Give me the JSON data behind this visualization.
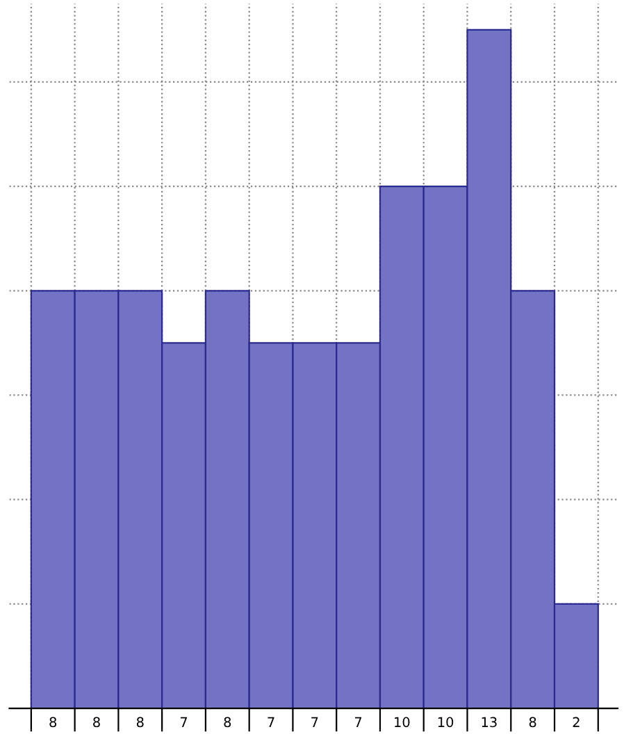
{
  "chart_data": {
    "type": "bar",
    "categories": [
      null,
      null,
      null,
      null,
      null,
      null,
      null,
      null,
      null,
      null,
      null,
      null,
      null
    ],
    "values": [
      8,
      8,
      8,
      7,
      8,
      7,
      7,
      7,
      10,
      10,
      13,
      8,
      2
    ],
    "color": "#7373c4",
    "data_labels": true,
    "grid": true,
    "ylim": [
      0,
      13.5
    ],
    "yticks": [
      {
        "value": 2,
        "label": null
      },
      {
        "value": 4,
        "label": null
      },
      {
        "value": 6,
        "label": null
      },
      {
        "value": 8,
        "label": null
      },
      {
        "value": 10,
        "label": null
      },
      {
        "value": 12,
        "label": null
      }
    ]
  }
}
